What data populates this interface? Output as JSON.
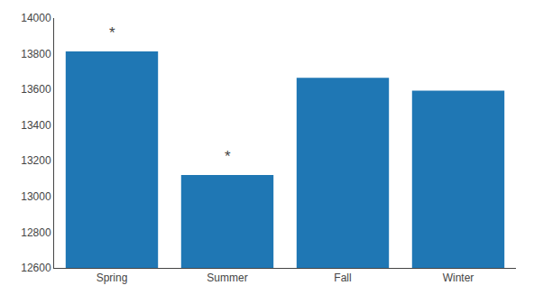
{
  "chart_data": {
    "type": "bar",
    "categories": [
      "Spring",
      "Summer",
      "Fall",
      "Winter"
    ],
    "values": [
      13813,
      13120,
      13665,
      13593
    ],
    "ylim": [
      12600,
      14000
    ],
    "yticks": [
      12600,
      12800,
      13000,
      13200,
      13400,
      13600,
      13800,
      14000
    ],
    "annotations": [
      {
        "text": "*",
        "category": "Spring",
        "y": 13860
      },
      {
        "text": "*",
        "category": "Summer",
        "y": 13165
      }
    ],
    "grid": false
  }
}
